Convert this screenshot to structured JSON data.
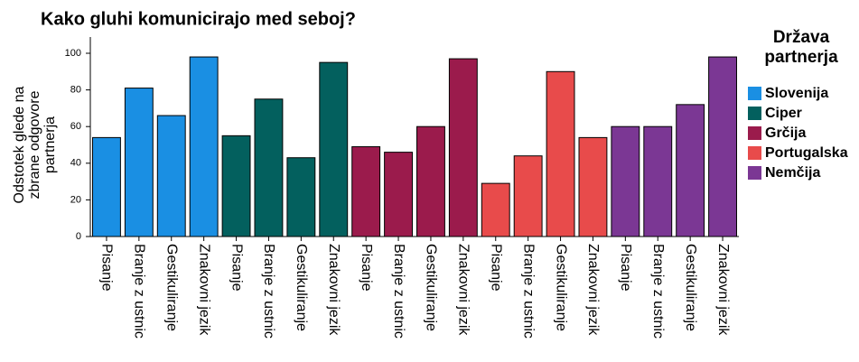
{
  "chart_data": {
    "type": "bar",
    "title": "Kako gluhi komunicirajo med seboj?",
    "ylabel": [
      "Odstotek glede na",
      "zbrane odgovore",
      "partnerja"
    ],
    "legend_title": [
      "Država",
      "partnerja"
    ],
    "categories": [
      "Pisanje",
      "Branje z ustnic",
      "Gestikuliranje",
      "Znakovni jezik"
    ],
    "series": [
      {
        "name": "Slovenija",
        "color": "#1a8fe3",
        "values": [
          54,
          81,
          66,
          98
        ]
      },
      {
        "name": "Ciper",
        "color": "#03605e",
        "values": [
          55,
          75,
          43,
          95
        ]
      },
      {
        "name": "Grčija",
        "color": "#9b1b4c",
        "values": [
          49,
          46,
          60,
          97
        ]
      },
      {
        "name": "Portugalska",
        "color": "#e84b4b",
        "values": [
          29,
          44,
          90,
          54
        ]
      },
      {
        "name": "Nemčija",
        "color": "#7b3794",
        "values": [
          60,
          60,
          72,
          98
        ]
      }
    ],
    "ylim": [
      0,
      100
    ],
    "yticks": [
      0,
      20,
      40,
      60,
      80,
      100
    ],
    "grid": false,
    "legend": "right"
  }
}
